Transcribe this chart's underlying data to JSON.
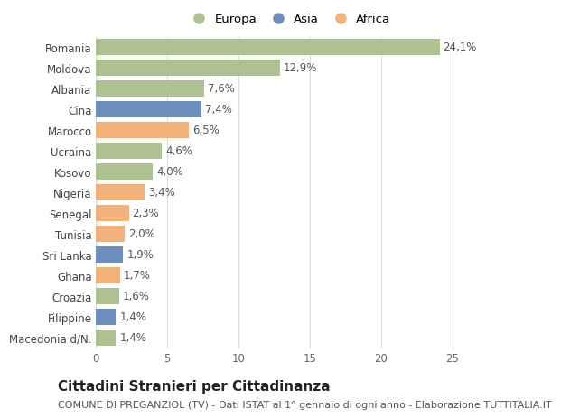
{
  "categories": [
    "Macedonia d/N.",
    "Filippine",
    "Croazia",
    "Ghana",
    "Sri Lanka",
    "Tunisia",
    "Senegal",
    "Nigeria",
    "Kosovo",
    "Ucraina",
    "Marocco",
    "Cina",
    "Albania",
    "Moldova",
    "Romania"
  ],
  "values": [
    1.4,
    1.4,
    1.6,
    1.7,
    1.9,
    2.0,
    2.3,
    3.4,
    4.0,
    4.6,
    6.5,
    7.4,
    7.6,
    12.9,
    24.1
  ],
  "labels": [
    "1,4%",
    "1,4%",
    "1,6%",
    "1,7%",
    "1,9%",
    "2,0%",
    "2,3%",
    "3,4%",
    "4,0%",
    "4,6%",
    "6,5%",
    "7,4%",
    "7,6%",
    "12,9%",
    "24,1%"
  ],
  "continents": [
    "Europa",
    "Asia",
    "Europa",
    "Africa",
    "Asia",
    "Africa",
    "Africa",
    "Africa",
    "Europa",
    "Europa",
    "Africa",
    "Asia",
    "Europa",
    "Europa",
    "Europa"
  ],
  "colors": {
    "Europa": "#adc191",
    "Asia": "#6b8ebf",
    "Africa": "#f2b27a"
  },
  "legend_labels": [
    "Europa",
    "Asia",
    "Africa"
  ],
  "legend_colors": [
    "#adc191",
    "#6b8ebf",
    "#f2b27a"
  ],
  "title": "Cittadini Stranieri per Cittadinanza",
  "subtitle": "COMUNE DI PREGANZIOL (TV) - Dati ISTAT al 1° gennaio di ogni anno - Elaborazione TUTTITALIA.IT",
  "xlim": [
    0,
    27
  ],
  "xticks": [
    0,
    5,
    10,
    15,
    20,
    25
  ],
  "background_color": "#ffffff",
  "grid_color": "#dddddd",
  "bar_height": 0.75,
  "title_fontsize": 11,
  "subtitle_fontsize": 8,
  "tick_fontsize": 8.5,
  "label_fontsize": 8.5
}
